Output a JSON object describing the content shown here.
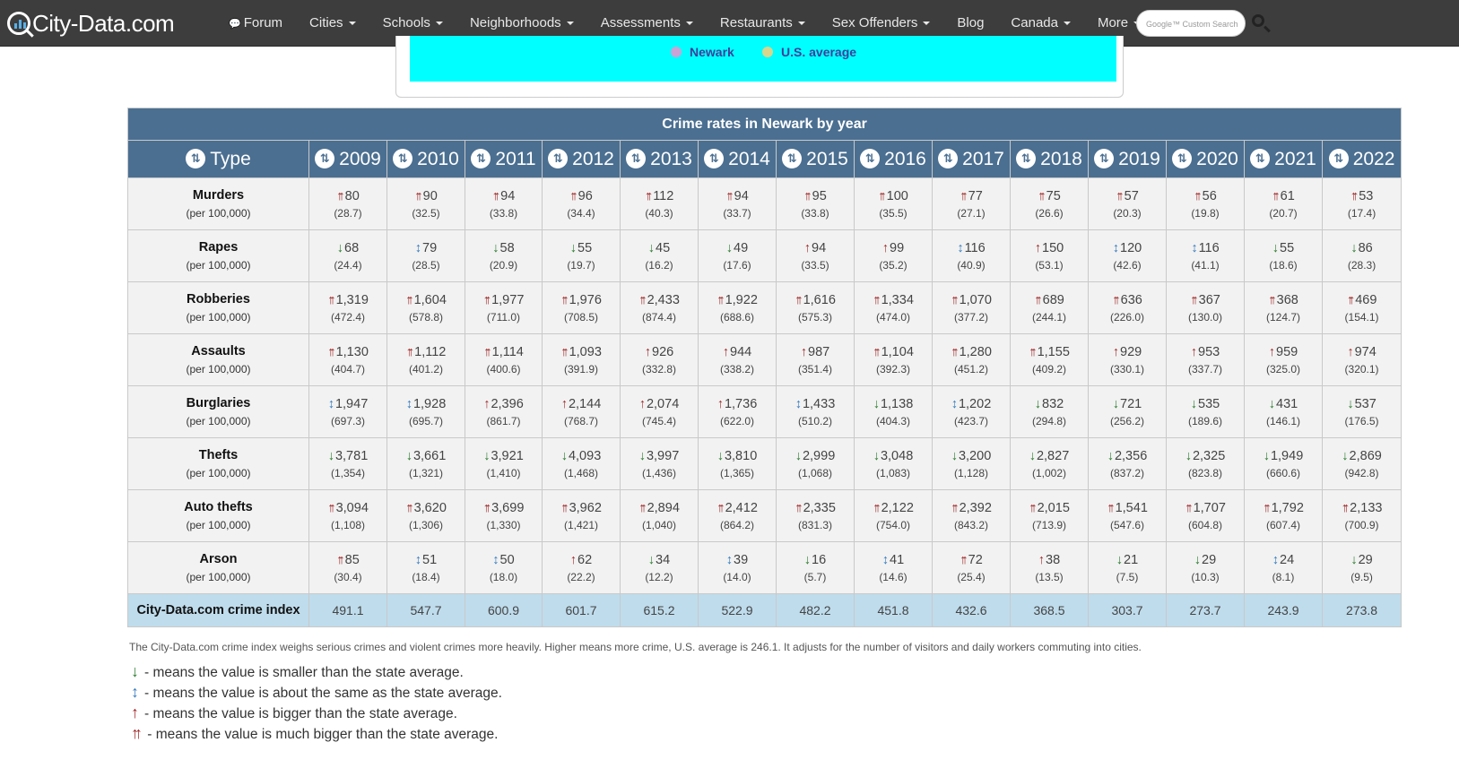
{
  "site": {
    "logo": "City-Data.com"
  },
  "nav": [
    {
      "label": "Forum",
      "caret": false
    },
    {
      "label": "Cities",
      "caret": true
    },
    {
      "label": "Schools",
      "caret": true
    },
    {
      "label": "Neighborhoods",
      "caret": true
    },
    {
      "label": "Assessments",
      "caret": true
    },
    {
      "label": "Restaurants",
      "caret": true
    },
    {
      "label": "Sex Offenders",
      "caret": true
    },
    {
      "label": "Blog",
      "caret": false
    },
    {
      "label": "Canada",
      "caret": true
    },
    {
      "label": "More",
      "caret": true
    }
  ],
  "search": {
    "placeholder": "Google™ Custom Search"
  },
  "chart_legend": [
    {
      "label": "Newark",
      "color": "#c9a3d6"
    },
    {
      "label": "U.S. average",
      "color": "#d6d68f"
    }
  ],
  "table": {
    "caption": "Crime rates in Newark by year",
    "type_header": "Type",
    "years": [
      "2009",
      "2010",
      "2011",
      "2012",
      "2013",
      "2014",
      "2015",
      "2016",
      "2017",
      "2018",
      "2019",
      "2020",
      "2021",
      "2022"
    ],
    "per_label": "(per 100,000)",
    "rows": [
      {
        "name": "Murders",
        "cells": [
          {
            "a": "uup",
            "v": "80",
            "r": "(28.7)"
          },
          {
            "a": "uup",
            "v": "90",
            "r": "(32.5)"
          },
          {
            "a": "uup",
            "v": "94",
            "r": "(33.8)"
          },
          {
            "a": "uup",
            "v": "96",
            "r": "(34.4)"
          },
          {
            "a": "uup",
            "v": "112",
            "r": "(40.3)"
          },
          {
            "a": "uup",
            "v": "94",
            "r": "(33.7)"
          },
          {
            "a": "uup",
            "v": "95",
            "r": "(33.8)"
          },
          {
            "a": "uup",
            "v": "100",
            "r": "(35.5)"
          },
          {
            "a": "uup",
            "v": "77",
            "r": "(27.1)"
          },
          {
            "a": "uup",
            "v": "75",
            "r": "(26.6)"
          },
          {
            "a": "uup",
            "v": "57",
            "r": "(20.3)"
          },
          {
            "a": "uup",
            "v": "56",
            "r": "(19.8)"
          },
          {
            "a": "uup",
            "v": "61",
            "r": "(20.7)"
          },
          {
            "a": "uup",
            "v": "53",
            "r": "(17.4)"
          }
        ]
      },
      {
        "name": "Rapes",
        "cells": [
          {
            "a": "down",
            "v": "68",
            "r": "(24.4)"
          },
          {
            "a": "same",
            "v": "79",
            "r": "(28.5)"
          },
          {
            "a": "down",
            "v": "58",
            "r": "(20.9)"
          },
          {
            "a": "down",
            "v": "55",
            "r": "(19.7)"
          },
          {
            "a": "down",
            "v": "45",
            "r": "(16.2)"
          },
          {
            "a": "down",
            "v": "49",
            "r": "(17.6)"
          },
          {
            "a": "up",
            "v": "94",
            "r": "(33.5)"
          },
          {
            "a": "up",
            "v": "99",
            "r": "(35.2)"
          },
          {
            "a": "same",
            "v": "116",
            "r": "(40.9)"
          },
          {
            "a": "up",
            "v": "150",
            "r": "(53.1)"
          },
          {
            "a": "same",
            "v": "120",
            "r": "(42.6)"
          },
          {
            "a": "same",
            "v": "116",
            "r": "(41.1)"
          },
          {
            "a": "down",
            "v": "55",
            "r": "(18.6)"
          },
          {
            "a": "down",
            "v": "86",
            "r": "(28.3)"
          }
        ]
      },
      {
        "name": "Robberies",
        "cells": [
          {
            "a": "uup",
            "v": "1,319",
            "r": "(472.4)"
          },
          {
            "a": "uup",
            "v": "1,604",
            "r": "(578.8)"
          },
          {
            "a": "uup",
            "v": "1,977",
            "r": "(711.0)"
          },
          {
            "a": "uup",
            "v": "1,976",
            "r": "(708.5)"
          },
          {
            "a": "uup",
            "v": "2,433",
            "r": "(874.4)"
          },
          {
            "a": "uup",
            "v": "1,922",
            "r": "(688.6)"
          },
          {
            "a": "uup",
            "v": "1,616",
            "r": "(575.3)"
          },
          {
            "a": "uup",
            "v": "1,334",
            "r": "(474.0)"
          },
          {
            "a": "uup",
            "v": "1,070",
            "r": "(377.2)"
          },
          {
            "a": "uup",
            "v": "689",
            "r": "(244.1)"
          },
          {
            "a": "uup",
            "v": "636",
            "r": "(226.0)"
          },
          {
            "a": "uup",
            "v": "367",
            "r": "(130.0)"
          },
          {
            "a": "uup",
            "v": "368",
            "r": "(124.7)"
          },
          {
            "a": "uup",
            "v": "469",
            "r": "(154.1)"
          }
        ]
      },
      {
        "name": "Assaults",
        "cells": [
          {
            "a": "uup",
            "v": "1,130",
            "r": "(404.7)"
          },
          {
            "a": "uup",
            "v": "1,112",
            "r": "(401.2)"
          },
          {
            "a": "uup",
            "v": "1,114",
            "r": "(400.6)"
          },
          {
            "a": "uup",
            "v": "1,093",
            "r": "(391.9)"
          },
          {
            "a": "up",
            "v": "926",
            "r": "(332.8)"
          },
          {
            "a": "up",
            "v": "944",
            "r": "(338.2)"
          },
          {
            "a": "up",
            "v": "987",
            "r": "(351.4)"
          },
          {
            "a": "uup",
            "v": "1,104",
            "r": "(392.3)"
          },
          {
            "a": "uup",
            "v": "1,280",
            "r": "(451.2)"
          },
          {
            "a": "uup",
            "v": "1,155",
            "r": "(409.2)"
          },
          {
            "a": "up",
            "v": "929",
            "r": "(330.1)"
          },
          {
            "a": "up",
            "v": "953",
            "r": "(337.7)"
          },
          {
            "a": "up",
            "v": "959",
            "r": "(325.0)"
          },
          {
            "a": "up",
            "v": "974",
            "r": "(320.1)"
          }
        ]
      },
      {
        "name": "Burglaries",
        "cells": [
          {
            "a": "same",
            "v": "1,947",
            "r": "(697.3)"
          },
          {
            "a": "same",
            "v": "1,928",
            "r": "(695.7)"
          },
          {
            "a": "up",
            "v": "2,396",
            "r": "(861.7)"
          },
          {
            "a": "up",
            "v": "2,144",
            "r": "(768.7)"
          },
          {
            "a": "up",
            "v": "2,074",
            "r": "(745.4)"
          },
          {
            "a": "up",
            "v": "1,736",
            "r": "(622.0)"
          },
          {
            "a": "same",
            "v": "1,433",
            "r": "(510.2)"
          },
          {
            "a": "down",
            "v": "1,138",
            "r": "(404.3)"
          },
          {
            "a": "same",
            "v": "1,202",
            "r": "(423.7)"
          },
          {
            "a": "down",
            "v": "832",
            "r": "(294.8)"
          },
          {
            "a": "down",
            "v": "721",
            "r": "(256.2)"
          },
          {
            "a": "down",
            "v": "535",
            "r": "(189.6)"
          },
          {
            "a": "down",
            "v": "431",
            "r": "(146.1)"
          },
          {
            "a": "down",
            "v": "537",
            "r": "(176.5)"
          }
        ]
      },
      {
        "name": "Thefts",
        "cells": [
          {
            "a": "down",
            "v": "3,781",
            "r": "(1,354)"
          },
          {
            "a": "down",
            "v": "3,661",
            "r": "(1,321)"
          },
          {
            "a": "down",
            "v": "3,921",
            "r": "(1,410)"
          },
          {
            "a": "down",
            "v": "4,093",
            "r": "(1,468)"
          },
          {
            "a": "down",
            "v": "3,997",
            "r": "(1,436)"
          },
          {
            "a": "down",
            "v": "3,810",
            "r": "(1,365)"
          },
          {
            "a": "down",
            "v": "2,999",
            "r": "(1,068)"
          },
          {
            "a": "down",
            "v": "3,048",
            "r": "(1,083)"
          },
          {
            "a": "down",
            "v": "3,200",
            "r": "(1,128)"
          },
          {
            "a": "down",
            "v": "2,827",
            "r": "(1,002)"
          },
          {
            "a": "down",
            "v": "2,356",
            "r": "(837.2)"
          },
          {
            "a": "down",
            "v": "2,325",
            "r": "(823.8)"
          },
          {
            "a": "down",
            "v": "1,949",
            "r": "(660.6)"
          },
          {
            "a": "down",
            "v": "2,869",
            "r": "(942.8)"
          }
        ]
      },
      {
        "name": "Auto thefts",
        "cells": [
          {
            "a": "uup",
            "v": "3,094",
            "r": "(1,108)"
          },
          {
            "a": "uup",
            "v": "3,620",
            "r": "(1,306)"
          },
          {
            "a": "uup",
            "v": "3,699",
            "r": "(1,330)"
          },
          {
            "a": "uup",
            "v": "3,962",
            "r": "(1,421)"
          },
          {
            "a": "uup",
            "v": "2,894",
            "r": "(1,040)"
          },
          {
            "a": "uup",
            "v": "2,412",
            "r": "(864.2)"
          },
          {
            "a": "uup",
            "v": "2,335",
            "r": "(831.3)"
          },
          {
            "a": "uup",
            "v": "2,122",
            "r": "(754.0)"
          },
          {
            "a": "uup",
            "v": "2,392",
            "r": "(843.2)"
          },
          {
            "a": "uup",
            "v": "2,015",
            "r": "(713.9)"
          },
          {
            "a": "uup",
            "v": "1,541",
            "r": "(547.6)"
          },
          {
            "a": "uup",
            "v": "1,707",
            "r": "(604.8)"
          },
          {
            "a": "uup",
            "v": "1,792",
            "r": "(607.4)"
          },
          {
            "a": "uup",
            "v": "2,133",
            "r": "(700.9)"
          }
        ]
      },
      {
        "name": "Arson",
        "cells": [
          {
            "a": "uup",
            "v": "85",
            "r": "(30.4)"
          },
          {
            "a": "same",
            "v": "51",
            "r": "(18.4)"
          },
          {
            "a": "same",
            "v": "50",
            "r": "(18.0)"
          },
          {
            "a": "up",
            "v": "62",
            "r": "(22.2)"
          },
          {
            "a": "down",
            "v": "34",
            "r": "(12.2)"
          },
          {
            "a": "same",
            "v": "39",
            "r": "(14.0)"
          },
          {
            "a": "down",
            "v": "16",
            "r": "(5.7)"
          },
          {
            "a": "same",
            "v": "41",
            "r": "(14.6)"
          },
          {
            "a": "uup",
            "v": "72",
            "r": "(25.4)"
          },
          {
            "a": "up",
            "v": "38",
            "r": "(13.5)"
          },
          {
            "a": "down",
            "v": "21",
            "r": "(7.5)"
          },
          {
            "a": "down",
            "v": "29",
            "r": "(10.3)"
          },
          {
            "a": "same",
            "v": "24",
            "r": "(8.1)"
          },
          {
            "a": "down",
            "v": "29",
            "r": "(9.5)"
          }
        ]
      }
    ],
    "index_label": "City-Data.com crime index",
    "index_values": [
      "491.1",
      "547.7",
      "600.9",
      "601.7",
      "615.2",
      "522.9",
      "482.2",
      "451.8",
      "432.6",
      "368.5",
      "303.7",
      "273.7",
      "243.9",
      "273.8"
    ]
  },
  "footnote": "The City-Data.com crime index weighs serious crimes and violent crimes more heavily. Higher means more crime, U.S. average is 246.1. It adjusts for the number of visitors and daily workers commuting into cities.",
  "arrow_key": [
    {
      "a": "down",
      "text": "- means the value is smaller than the state average."
    },
    {
      "a": "same",
      "text": "- means the value is about the same as the state average."
    },
    {
      "a": "up",
      "text": "- means the value is bigger than the state average."
    },
    {
      "a": "uup",
      "text": " - means the value is much bigger than the state average."
    }
  ],
  "arrow_glyphs": {
    "down": "↓",
    "same": "↕",
    "up": "↑",
    "uup": "↑↑"
  },
  "colors": {
    "nav_bg": "#3d3d3d",
    "table_header": "#4b6f91",
    "index_row": "#bfdcec",
    "arrow_down": "#2e7d32",
    "arrow_same": "#3a7ebf",
    "arrow_up": "#a12a2a",
    "chart_bg": "#00ffff"
  }
}
